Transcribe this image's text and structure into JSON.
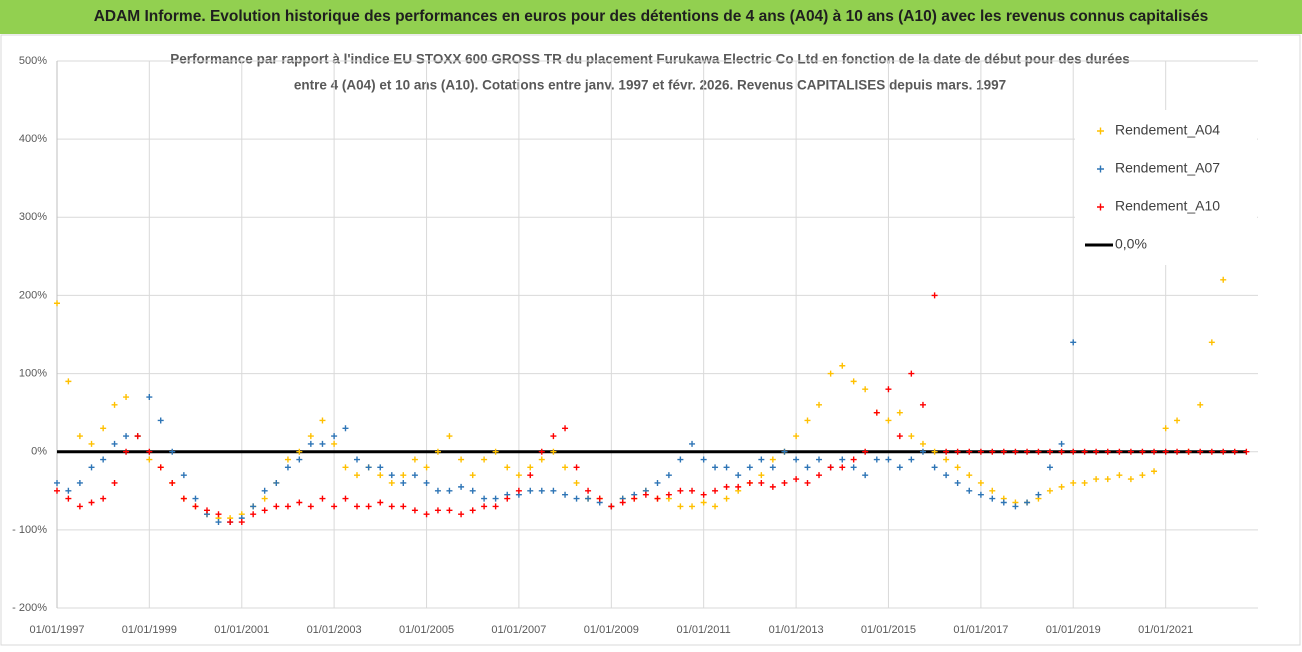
{
  "header": {
    "title": "ADAM Informe. Evolution historique des performances en euros pour des détentions de 4 ans (A04) à 10 ans (A10) avec les revenus connus capitalisés"
  },
  "chart_data": {
    "type": "scatter",
    "title": [
      "Performance par rapport à l'indice EU STOXX 600 GROSS TR  du placement Furukawa Electric Co Ltd en fonction de la date de début pour des durées",
      "entre 4 (A04) et 10 ans (A10). Cotations entre janv. 1997 et févr. 2026. Revenus CAPITALISES depuis mars. 1997"
    ],
    "x": [
      "1997-01-01",
      "1997-04-01",
      "1997-07-01",
      "1997-10-01",
      "1998-01-01",
      "1998-04-01",
      "1998-07-01",
      "1998-10-01",
      "1999-01-01",
      "1999-04-01",
      "1999-07-01",
      "1999-10-01",
      "2000-01-01",
      "2000-04-01",
      "2000-07-01",
      "2000-10-01",
      "2001-01-01",
      "2001-04-01",
      "2001-07-01",
      "2001-10-01",
      "2002-01-01",
      "2002-04-01",
      "2002-07-01",
      "2002-10-01",
      "2003-01-01",
      "2003-04-01",
      "2003-07-01",
      "2003-10-01",
      "2004-01-01",
      "2004-04-01",
      "2004-07-01",
      "2004-10-01",
      "2005-01-01",
      "2005-04-01",
      "2005-07-01",
      "2005-10-01",
      "2006-01-01",
      "2006-04-01",
      "2006-07-01",
      "2006-10-01",
      "2007-01-01",
      "2007-04-01",
      "2007-07-01",
      "2007-10-01",
      "2008-01-01",
      "2008-04-01",
      "2008-07-01",
      "2008-10-01",
      "2009-01-01",
      "2009-04-01",
      "2009-07-01",
      "2009-10-01",
      "2010-01-01",
      "2010-04-01",
      "2010-07-01",
      "2010-10-01",
      "2011-01-01",
      "2011-04-01",
      "2011-07-01",
      "2011-10-01",
      "2012-01-01",
      "2012-04-01",
      "2012-07-01",
      "2012-10-01",
      "2013-01-01",
      "2013-04-01",
      "2013-07-01",
      "2013-10-01",
      "2014-01-01",
      "2014-04-01",
      "2014-07-01",
      "2014-10-01",
      "2015-01-01",
      "2015-04-01",
      "2015-07-01",
      "2015-10-01",
      "2016-01-01",
      "2016-04-01",
      "2016-07-01",
      "2016-10-01",
      "2017-01-01",
      "2017-04-01",
      "2017-07-01",
      "2017-10-01",
      "2018-01-01",
      "2018-04-01",
      "2018-07-01",
      "2018-10-01",
      "2019-01-01",
      "2019-04-01",
      "2019-07-01",
      "2019-10-01",
      "2020-01-01",
      "2020-04-01",
      "2020-07-01",
      "2020-10-01",
      "2021-01-01",
      "2021-04-01",
      "2021-07-01",
      "2021-10-01",
      "2022-01-01",
      "2022-04-01",
      "2022-07-01",
      "2022-10-01"
    ],
    "series": [
      {
        "name": "Rendement_A04",
        "color": "#ffc000",
        "values": [
          190,
          90,
          20,
          10,
          30,
          60,
          70,
          20,
          -10,
          -20,
          -40,
          -60,
          -70,
          -80,
          -85,
          -85,
          -80,
          -70,
          -60,
          -40,
          -10,
          0,
          20,
          40,
          10,
          -20,
          -30,
          -20,
          -30,
          -40,
          -30,
          -10,
          -20,
          0,
          20,
          -10,
          -30,
          -10,
          0,
          -20,
          -30,
          -20,
          -10,
          0,
          -20,
          -40,
          -60,
          -60,
          -70,
          -60,
          -60,
          -50,
          -60,
          -60,
          -70,
          -70,
          -65,
          -70,
          -60,
          -50,
          -40,
          -30,
          -10,
          0,
          20,
          40,
          60,
          100,
          110,
          90,
          80,
          50,
          40,
          50,
          20,
          10,
          0,
          -10,
          -20,
          -30,
          -40,
          -50,
          -60,
          -65,
          -65,
          -60,
          -50,
          -45,
          -40,
          -40,
          -35,
          -35,
          -30,
          -35,
          -30,
          -25,
          30,
          40,
          0,
          60,
          140,
          220,
          null,
          null
        ]
      },
      {
        "name": "Rendement_A07",
        "color": "#2e75b6",
        "values": [
          -40,
          -50,
          -40,
          -20,
          -10,
          10,
          20,
          20,
          70,
          40,
          0,
          -30,
          -60,
          -80,
          -90,
          -90,
          -85,
          -70,
          -50,
          -40,
          -20,
          -10,
          10,
          10,
          20,
          30,
          -10,
          -20,
          -20,
          -30,
          -40,
          -30,
          -40,
          -50,
          -50,
          -45,
          -50,
          -60,
          -60,
          -55,
          -55,
          -50,
          -50,
          -50,
          -55,
          -60,
          -60,
          -65,
          -70,
          -60,
          -55,
          -50,
          -40,
          -30,
          -10,
          10,
          -10,
          -20,
          -20,
          -30,
          -20,
          -10,
          -20,
          0,
          -10,
          -20,
          -10,
          -20,
          -10,
          -20,
          -30,
          -10,
          -10,
          -20,
          -10,
          0,
          -20,
          -30,
          -40,
          -50,
          -55,
          -60,
          -65,
          -70,
          -65,
          -55,
          -20,
          10,
          140,
          null,
          null,
          null,
          null,
          null,
          null,
          null,
          null,
          null,
          null,
          null,
          null,
          null,
          null,
          null
        ]
      },
      {
        "name": "Rendement_A10",
        "color": "#ff0000",
        "values": [
          -50,
          -60,
          -70,
          -65,
          -60,
          -40,
          0,
          20,
          0,
          -20,
          -40,
          -60,
          -70,
          -75,
          -80,
          -90,
          -90,
          -80,
          -75,
          -70,
          -70,
          -65,
          -70,
          -60,
          -70,
          -60,
          -70,
          -70,
          -65,
          -70,
          -70,
          -75,
          -80,
          -75,
          -75,
          -80,
          -75,
          -70,
          -70,
          -60,
          -50,
          -30,
          0,
          20,
          30,
          -20,
          -50,
          -60,
          -70,
          -65,
          -60,
          -55,
          -60,
          -55,
          -50,
          -50,
          -55,
          -50,
          -45,
          -45,
          -40,
          -40,
          -45,
          -40,
          -35,
          -40,
          -30,
          -20,
          -20,
          -10,
          0,
          50,
          80,
          20,
          100,
          60,
          200,
          0,
          0,
          0,
          0,
          0,
          0,
          0,
          0,
          0,
          0,
          0,
          0,
          0,
          0,
          0,
          0,
          0,
          0,
          0,
          0,
          0,
          0,
          0,
          0,
          0,
          0,
          0
        ]
      }
    ],
    "reference_line": {
      "name": "0,0%",
      "value": 0,
      "color": "#000000"
    },
    "xlim": [
      "1997-01-01",
      "2023-01-01"
    ],
    "xticks": [
      {
        "value": "1997-01-01",
        "label": "01/01/1997"
      },
      {
        "value": "1999-01-01",
        "label": "01/01/1999"
      },
      {
        "value": "2001-01-01",
        "label": "01/01/2001"
      },
      {
        "value": "2003-01-01",
        "label": "01/01/2003"
      },
      {
        "value": "2005-01-01",
        "label": "01/01/2005"
      },
      {
        "value": "2007-01-01",
        "label": "01/01/2007"
      },
      {
        "value": "2009-01-01",
        "label": "01/01/2009"
      },
      {
        "value": "2011-01-01",
        "label": "01/01/2011"
      },
      {
        "value": "2013-01-01",
        "label": "01/01/2013"
      },
      {
        "value": "2015-01-01",
        "label": "01/01/2015"
      },
      {
        "value": "2017-01-01",
        "label": "01/01/2017"
      },
      {
        "value": "2019-01-01",
        "label": "01/01/2019"
      },
      {
        "value": "2021-01-01",
        "label": "01/01/2021"
      }
    ],
    "ylim": [
      -200,
      500
    ],
    "yticks": [
      {
        "value": -200,
        "label": "- 200%"
      },
      {
        "value": -100,
        "label": "- 100%"
      },
      {
        "value": 0,
        "label": "0%"
      },
      {
        "value": 100,
        "label": "100%"
      },
      {
        "value": 200,
        "label": "200%"
      },
      {
        "value": 300,
        "label": "300%"
      },
      {
        "value": 400,
        "label": "400%"
      },
      {
        "value": 500,
        "label": "500%"
      }
    ],
    "grid": true,
    "legend": "upper right"
  }
}
